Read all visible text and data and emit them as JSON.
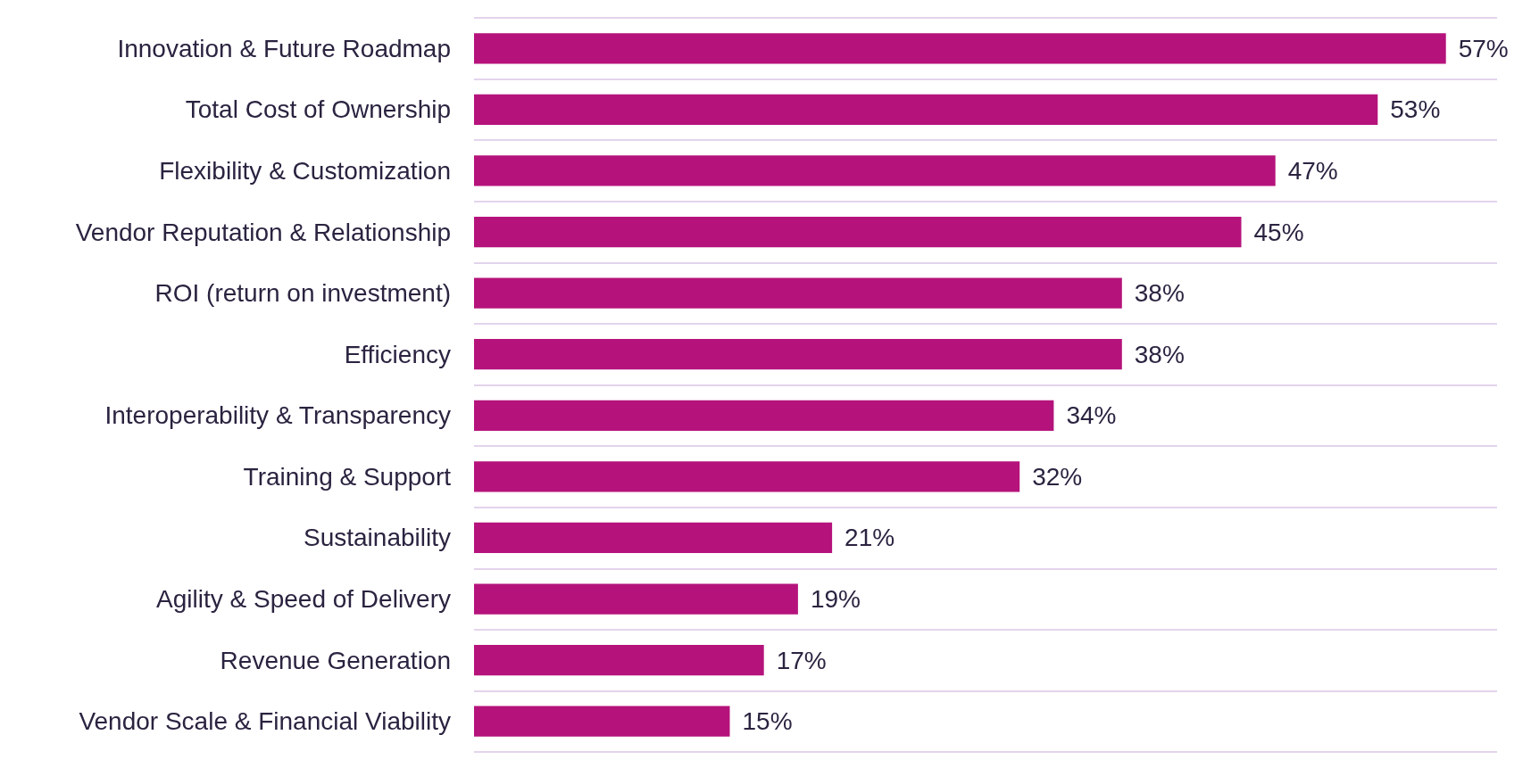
{
  "chart_data": {
    "type": "bar",
    "orientation": "horizontal",
    "categories": [
      "Innovation & Future Roadmap",
      "Total Cost of Ownership",
      "Flexibility & Customization",
      "Vendor Reputation & Relationship",
      "ROI (return on investment)",
      "Efficiency",
      "Interoperability & Transparency",
      "Training & Support",
      "Sustainability",
      "Agility & Speed of Delivery",
      "Revenue Generation",
      "Vendor Scale & Financial Viability"
    ],
    "values": [
      57,
      53,
      47,
      45,
      38,
      38,
      34,
      32,
      21,
      19,
      17,
      15
    ],
    "value_labels": [
      "57%",
      "53%",
      "47%",
      "45%",
      "38%",
      "38%",
      "34%",
      "32%",
      "21%",
      "19%",
      "17%",
      "15%"
    ],
    "color": "#b5137b",
    "grid": "y"
  }
}
